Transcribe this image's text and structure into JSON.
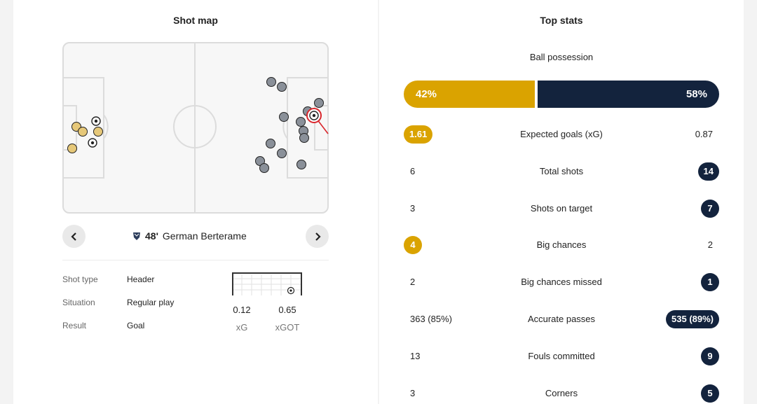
{
  "shot_map": {
    "title": "Shot map",
    "selected_shot": {
      "minute": "48'",
      "player": "German Berterame",
      "details": [
        {
          "label": "Shot type",
          "value": "Header"
        },
        {
          "label": "Situation",
          "value": "Regular play"
        },
        {
          "label": "Result",
          "value": "Goal"
        }
      ],
      "xg": "0.12",
      "xg_label": "xG",
      "xgot": "0.65",
      "xgot_label": "xGOT"
    },
    "prev_icon": "chevron-left-icon",
    "next_icon": "chevron-right-icon",
    "colors": {
      "home": "#e6c879",
      "away": "#8a9099",
      "goal_marker": "#d9262c",
      "pitch_line": "#dcdcdc"
    }
  },
  "top_stats": {
    "title": "Top stats",
    "possession": {
      "label": "Ball possession",
      "home": "42%",
      "away": "58%",
      "home_value": 42,
      "away_value": 58
    },
    "rows": [
      {
        "label": "Expected goals (xG)",
        "home": "1.61",
        "away": "0.87",
        "leader": "home"
      },
      {
        "label": "Total shots",
        "home": "6",
        "away": "14",
        "leader": "away"
      },
      {
        "label": "Shots on target",
        "home": "3",
        "away": "7",
        "leader": "away"
      },
      {
        "label": "Big chances",
        "home": "4",
        "away": "2",
        "leader": "home"
      },
      {
        "label": "Big chances missed",
        "home": "2",
        "away": "1",
        "leader": "away"
      },
      {
        "label": "Accurate passes",
        "home": "363 (85%)",
        "away": "535 (89%)",
        "leader": "away"
      },
      {
        "label": "Fouls committed",
        "home": "13",
        "away": "9",
        "leader": "away"
      },
      {
        "label": "Corners",
        "home": "3",
        "away": "5",
        "leader": "away"
      }
    ],
    "colors": {
      "home": "#daa300",
      "away": "#13233d"
    }
  }
}
